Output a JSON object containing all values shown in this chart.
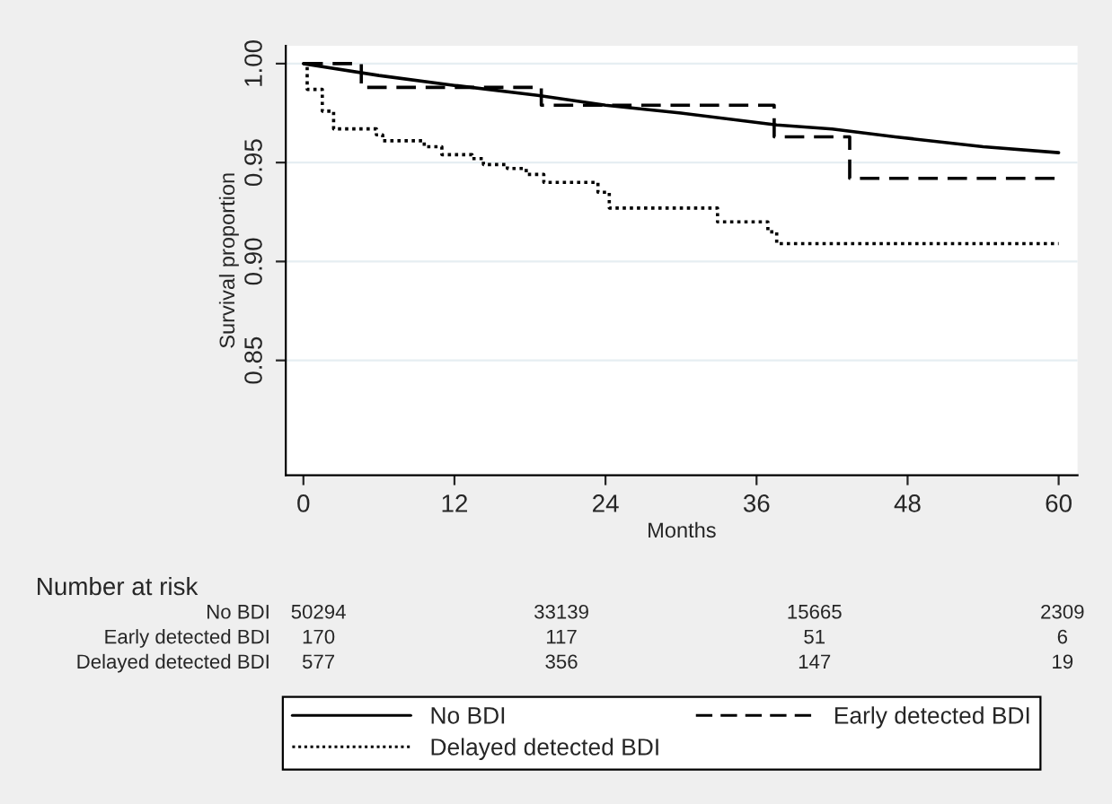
{
  "chart_data": {
    "type": "step",
    "xlabel": "Months",
    "ylabel": "Survival proportion",
    "xlim": [
      -1.4,
      61.5
    ],
    "ylim": [
      0.792,
      1.009
    ],
    "xticks": [
      0,
      12,
      24,
      36,
      48,
      60
    ],
    "yticks": [
      {
        "value": 0.85,
        "label": "0.85"
      },
      {
        "value": 0.9,
        "label": "0.90"
      },
      {
        "value": 0.95,
        "label": "0.95"
      },
      {
        "value": 1.0,
        "label": "1.00"
      }
    ],
    "grid": "y",
    "legend": "bottom",
    "series": [
      {
        "name": "No BDI",
        "type": "line",
        "line_style": "solid",
        "color": "#000000",
        "x": [
          0,
          6,
          12,
          18.6,
          24,
          30,
          37.6,
          42,
          47,
          54,
          60
        ],
        "values": [
          1.0,
          0.994,
          0.989,
          0.984,
          0.979,
          0.975,
          0.969,
          0.967,
          0.963,
          0.958,
          0.955
        ]
      },
      {
        "name": "Early detected BDI",
        "line_style": "dashed",
        "color": "#000000",
        "x": [
          0,
          4.6,
          18.9,
          37.4,
          43.4,
          60
        ],
        "values": [
          1.0,
          0.988,
          0.979,
          0.963,
          0.942,
          0.942
        ]
      },
      {
        "name": "Delayed detected BDI",
        "line_style": "dotted",
        "color": "#000000",
        "x": [
          0,
          0.3,
          1.5,
          2.4,
          5.8,
          6.3,
          9.6,
          11,
          13.4,
          14.3,
          16.2,
          17.7,
          19.1,
          23.4,
          24.3,
          32.9,
          36.9,
          37.6,
          60
        ],
        "values": [
          1.0,
          0.987,
          0.976,
          0.967,
          0.964,
          0.961,
          0.958,
          0.954,
          0.952,
          0.949,
          0.947,
          0.944,
          0.94,
          0.935,
          0.927,
          0.92,
          0.915,
          0.909,
          0.909
        ]
      }
    ],
    "annotations": [
      "Number at risk",
      "No BDI",
      "50294",
      "33139",
      "15665",
      "2309",
      "Early detected BDI",
      "170",
      "117",
      "51",
      "6",
      "Delayed detected BDI",
      "577",
      "356",
      "147",
      "19"
    ]
  }
}
